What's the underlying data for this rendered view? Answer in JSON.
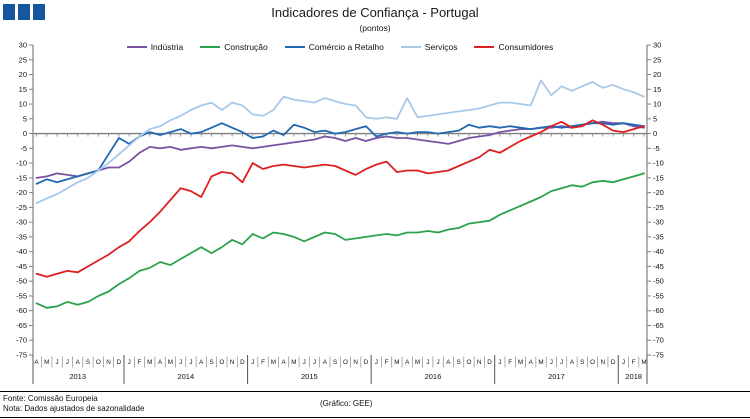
{
  "logo": {
    "color": "#15569C",
    "square_count": 3
  },
  "header": {
    "title": "Indicadores de Confiança - Portugal",
    "subtitle": "(pontos)"
  },
  "footer": {
    "fonte": "Fonte: Comissão Europeia",
    "nota": "Nota: Dados ajustados de sazonalidade",
    "grafico": "(Gráfico: GEE)"
  },
  "chart_data": {
    "type": "line",
    "title": "Indicadores de Confiança - Portugal",
    "subtitle": "(pontos)",
    "ylim": [
      -75,
      30
    ],
    "ytick_step": 5,
    "grid": false,
    "legend_position": "top",
    "axis_color": "#808080",
    "x_months": [
      "A",
      "M",
      "J",
      "J",
      "A",
      "S",
      "O",
      "N",
      "D",
      "J",
      "F",
      "M",
      "A",
      "M",
      "J",
      "J",
      "A",
      "S",
      "O",
      "N",
      "D",
      "J",
      "F",
      "M",
      "A",
      "M",
      "J",
      "J",
      "A",
      "S",
      "O",
      "N",
      "D",
      "J",
      "F",
      "M",
      "A",
      "M",
      "J",
      "J",
      "A",
      "S",
      "O",
      "N",
      "D",
      "J",
      "F",
      "M",
      "A",
      "M",
      "J",
      "J",
      "A",
      "S",
      "O",
      "N",
      "D",
      "J",
      "F",
      "M"
    ],
    "x_years": [
      {
        "label": "2013",
        "start": 0,
        "count": 9
      },
      {
        "label": "2014",
        "start": 9,
        "count": 12
      },
      {
        "label": "2015",
        "start": 21,
        "count": 12
      },
      {
        "label": "2016",
        "start": 33,
        "count": 12
      },
      {
        "label": "2017",
        "start": 45,
        "count": 12
      },
      {
        "label": "2018",
        "start": 57,
        "count": 3
      }
    ],
    "series": [
      {
        "name": "Indústria",
        "color": "#7952A3",
        "values": [
          -15,
          -14.5,
          -13.5,
          -14,
          -14.5,
          -13.5,
          -12.5,
          -11.5,
          -11.5,
          -9.5,
          -6.5,
          -4.5,
          -5,
          -4.5,
          -5.5,
          -5,
          -4.5,
          -5,
          -4.5,
          -4,
          -4.5,
          -5,
          -4.5,
          -4,
          -3.5,
          -3,
          -2.5,
          -2,
          -1,
          -1.5,
          -2.5,
          -1.5,
          -2.5,
          -1.5,
          -1,
          -1.5,
          -1.5,
          -2,
          -2.5,
          -3,
          -3.5,
          -2.5,
          -1.5,
          -1,
          -0.5,
          0.5,
          1,
          1.5,
          1.5,
          2,
          2,
          2.5,
          2,
          3,
          3.5,
          4,
          3.5,
          3.5,
          2.5,
          2
        ]
      },
      {
        "name": "Construção",
        "color": "#2BA24C",
        "values": [
          -57.5,
          -59,
          -58.5,
          -57,
          -58,
          -57,
          -55,
          -53.5,
          -51,
          -49,
          -46.5,
          -45.5,
          -43.5,
          -44.5,
          -42.5,
          -40.5,
          -38.5,
          -40.5,
          -38.5,
          -36,
          -37.5,
          -34,
          -35.5,
          -33.5,
          -34,
          -35,
          -36.5,
          -35,
          -33.5,
          -34,
          -36,
          -35.5,
          -35,
          -34.5,
          -34,
          -34.5,
          -33.5,
          -33.5,
          -33,
          -33.5,
          -32.5,
          -32,
          -30.5,
          -30,
          -29.5,
          -27.5,
          -26,
          -24.5,
          -23,
          -21.5,
          -19.5,
          -18.5,
          -17.5,
          -18,
          -16.5,
          -16,
          -16.5,
          -15.5,
          -14.5,
          -13.5
        ]
      },
      {
        "name": "Comércio a Retalho",
        "color": "#2268B2",
        "values": [
          -17,
          -15.5,
          -16.5,
          -15.5,
          -14.5,
          -13.5,
          -12.5,
          -7,
          -1.5,
          -3.5,
          -1,
          0.5,
          -0.5,
          0.5,
          1.5,
          0,
          0.5,
          2,
          3.5,
          2,
          0.5,
          -1.5,
          -1,
          1,
          -0.5,
          3,
          2,
          0.5,
          1,
          0,
          0.5,
          1.5,
          2.5,
          -1,
          0,
          0.5,
          0,
          0.5,
          0.5,
          0,
          0.5,
          1,
          3,
          2,
          2.5,
          2,
          2.5,
          2,
          1.5,
          2,
          2.5,
          2,
          2.5,
          3,
          3.5,
          3.5,
          3,
          3.5,
          3,
          2.5
        ]
      },
      {
        "name": "Serviços",
        "color": "#A9C9E9",
        "values": [
          -23.5,
          -22,
          -20.5,
          -18.5,
          -16.5,
          -15,
          -12.5,
          -10,
          -7,
          -4,
          -1,
          1.5,
          2.5,
          4.5,
          6,
          8,
          9.5,
          10.5,
          8,
          10.5,
          9.5,
          6.5,
          6,
          8,
          12.5,
          11.5,
          11,
          10.5,
          12,
          11,
          10,
          9.5,
          5.5,
          5,
          5.5,
          5,
          12,
          5.5,
          6,
          6.5,
          7,
          7.5,
          8,
          8.5,
          9.5,
          10.5,
          10.5,
          10,
          9.5,
          18,
          13,
          16,
          14.5,
          16,
          17.5,
          15.5,
          16.5,
          15,
          14,
          12.5
        ]
      },
      {
        "name": "Consumidores",
        "color": "#DD1F1F",
        "values": [
          -47.5,
          -48.5,
          -47.5,
          -46.5,
          -47,
          -45,
          -43,
          -41,
          -38.5,
          -36.5,
          -33,
          -30,
          -26.5,
          -22.5,
          -18.5,
          -19.5,
          -21.5,
          -14.5,
          -13,
          -13.5,
          -16.5,
          -10,
          -12,
          -11,
          -10.5,
          -11,
          -11.5,
          -11,
          -10.5,
          -11,
          -12.5,
          -14,
          -12,
          -10.5,
          -9.5,
          -13,
          -12.5,
          -12.5,
          -13.5,
          -13,
          -12.5,
          -11,
          -9.5,
          -8,
          -5.5,
          -6.5,
          -4.5,
          -2.5,
          -1,
          0.5,
          2.5,
          4,
          2,
          2.5,
          4.5,
          3,
          1,
          0.5,
          1.5,
          2.5
        ]
      }
    ]
  }
}
